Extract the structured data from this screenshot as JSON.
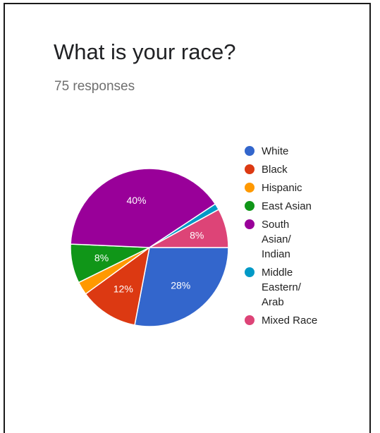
{
  "header": {
    "title": "What is your race?",
    "responses": "75 responses"
  },
  "chart_data": {
    "type": "pie",
    "categories": [
      "White",
      "Black",
      "Hispanic",
      "East Asian",
      "South Asian/ Indian",
      "Middle Eastern/ Arab",
      "Mixed Race"
    ],
    "legend_lines": [
      [
        "White"
      ],
      [
        "Black"
      ],
      [
        "Hispanic"
      ],
      [
        "East Asian"
      ],
      [
        "South",
        "Asian/",
        "Indian"
      ],
      [
        "Middle",
        "Eastern/",
        "Arab"
      ],
      [
        "Mixed Race"
      ]
    ],
    "values": [
      28,
      12,
      2.7,
      8,
      40,
      1.3,
      8
    ],
    "data_labels": [
      "28%",
      "12%",
      "",
      "8%",
      "40%",
      "",
      "8%"
    ],
    "colors": [
      "#3366cc",
      "#dc3912",
      "#ff9900",
      "#109618",
      "#990099",
      "#0099c6",
      "#dd4477"
    ],
    "legend_position": "right"
  }
}
